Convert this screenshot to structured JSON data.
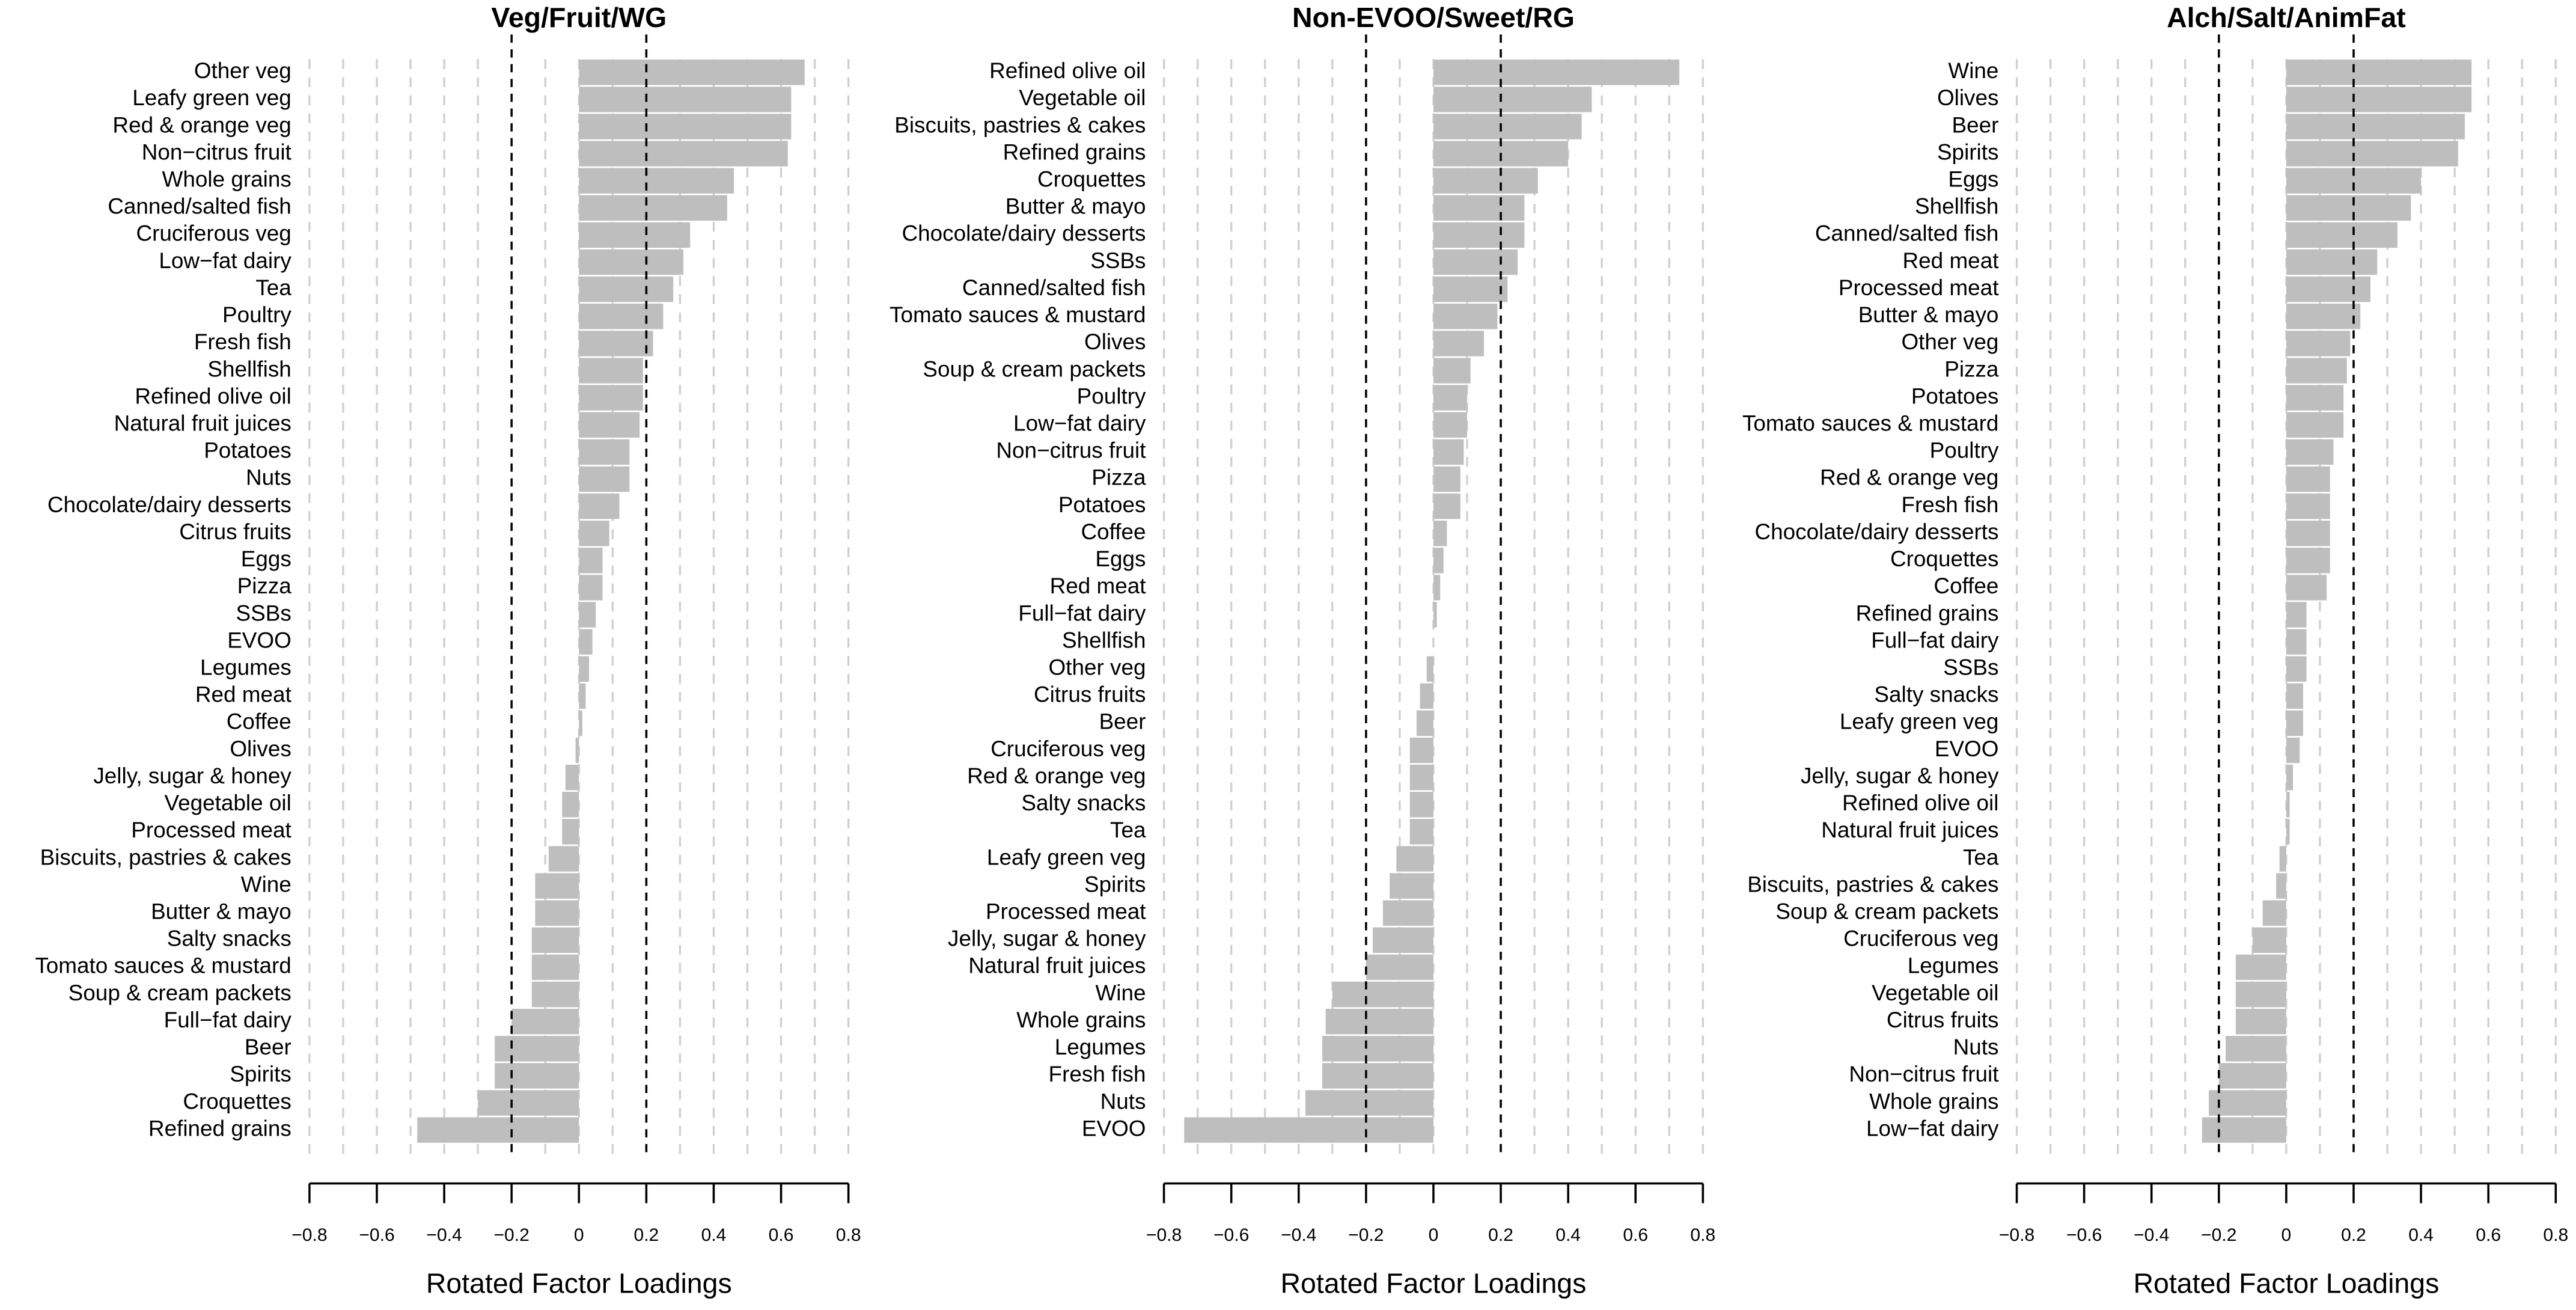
{
  "chart_data": [
    {
      "type": "bar",
      "orientation": "horizontal",
      "title": "Veg/Fruit/WG",
      "xlabel": "Rotated Factor Loadings",
      "color": "#bebebe",
      "categories": [
        "Other veg",
        "Leafy green veg",
        "Red & orange veg",
        "Non−citrus fruit",
        "Whole grains",
        "Canned/salted fish",
        "Cruciferous veg",
        "Low−fat dairy",
        "Tea",
        "Poultry",
        "Fresh fish",
        "Shellfish",
        "Refined olive oil",
        "Natural fruit juices",
        "Potatoes",
        "Nuts",
        "Chocolate/dairy desserts",
        "Citrus fruits",
        "Eggs",
        "Pizza",
        "SSBs",
        "EVOO",
        "Legumes",
        "Red meat",
        "Coffee",
        "Olives",
        "Jelly, sugar & honey",
        "Vegetable oil",
        "Processed meat",
        "Biscuits, pastries & cakes",
        "Wine",
        "Butter & mayo",
        "Salty snacks",
        "Tomato sauces & mustard",
        "Soup & cream packets",
        "Full−fat dairy",
        "Beer",
        "Spirits",
        "Croquettes",
        "Refined grains"
      ],
      "values": [
        0.67,
        0.63,
        0.63,
        0.62,
        0.46,
        0.44,
        0.33,
        0.31,
        0.28,
        0.25,
        0.22,
        0.19,
        0.19,
        0.18,
        0.15,
        0.15,
        0.12,
        0.09,
        0.07,
        0.07,
        0.05,
        0.04,
        0.03,
        0.02,
        0.01,
        -0.01,
        -0.04,
        -0.05,
        -0.05,
        -0.09,
        -0.13,
        -0.13,
        -0.14,
        -0.14,
        -0.14,
        -0.2,
        -0.25,
        -0.25,
        -0.3,
        -0.48
      ],
      "xlim": [
        -0.8,
        0.8
      ],
      "xticks": [
        {
          "value": -0.8,
          "label": "−0.8"
        },
        {
          "value": -0.6,
          "label": "−0.6"
        },
        {
          "value": -0.4,
          "label": "−0.4"
        },
        {
          "value": -0.2,
          "label": "−0.2"
        },
        0,
        0.2,
        0.4,
        0.6,
        0.8
      ],
      "gridlines": [
        -0.8,
        -0.7,
        -0.6,
        -0.5,
        -0.4,
        -0.3,
        -0.1,
        0.0,
        0.1,
        0.3,
        0.4,
        0.5,
        0.6,
        0.7,
        0.8
      ],
      "reflines": [
        -0.2,
        0.2
      ]
    },
    {
      "type": "bar",
      "orientation": "horizontal",
      "title": "Non-EVOO/Sweet/RG",
      "xlabel": "Rotated Factor Loadings",
      "color": "#bebebe",
      "categories": [
        "Refined olive oil",
        "Vegetable oil",
        "Biscuits, pastries & cakes",
        "Refined grains",
        "Croquettes",
        "Butter & mayo",
        "Chocolate/dairy desserts",
        "SSBs",
        "Canned/salted fish",
        "Tomato sauces & mustard",
        "Olives",
        "Soup & cream packets",
        "Poultry",
        "Low−fat dairy",
        "Non−citrus fruit",
        "Pizza",
        "Potatoes",
        "Coffee",
        "Eggs",
        "Red meat",
        "Full−fat dairy",
        "Shellfish",
        "Other veg",
        "Citrus fruits",
        "Beer",
        "Cruciferous veg",
        "Red & orange veg",
        "Salty snacks",
        "Tea",
        "Leafy green veg",
        "Spirits",
        "Processed meat",
        "Jelly, sugar & honey",
        "Natural fruit juices",
        "Wine",
        "Whole grains",
        "Legumes",
        "Fresh fish",
        "Nuts",
        "EVOO"
      ],
      "values": [
        0.73,
        0.47,
        0.44,
        0.4,
        0.31,
        0.27,
        0.27,
        0.25,
        0.22,
        0.19,
        0.15,
        0.11,
        0.1,
        0.1,
        0.09,
        0.08,
        0.08,
        0.04,
        0.03,
        0.02,
        0.01,
        0.0,
        -0.02,
        -0.04,
        -0.05,
        -0.07,
        -0.07,
        -0.07,
        -0.07,
        -0.11,
        -0.13,
        -0.15,
        -0.18,
        -0.2,
        -0.3,
        -0.32,
        -0.33,
        -0.33,
        -0.38,
        -0.74
      ],
      "xlim": [
        -0.8,
        0.8
      ],
      "xticks": [
        {
          "value": -0.8,
          "label": "−0.8"
        },
        {
          "value": -0.6,
          "label": "−0.6"
        },
        {
          "value": -0.4,
          "label": "−0.4"
        },
        {
          "value": -0.2,
          "label": "−0.2"
        },
        0,
        0.2,
        0.4,
        0.6,
        0.8
      ],
      "gridlines": [
        -0.8,
        -0.7,
        -0.6,
        -0.5,
        -0.4,
        -0.3,
        -0.1,
        0.0,
        0.1,
        0.3,
        0.4,
        0.5,
        0.6,
        0.7,
        0.8
      ],
      "reflines": [
        -0.2,
        0.2
      ]
    },
    {
      "type": "bar",
      "orientation": "horizontal",
      "title": "Alch/Salt/AnimFat",
      "xlabel": "Rotated Factor Loadings",
      "color": "#bebebe",
      "categories": [
        "Wine",
        "Olives",
        "Beer",
        "Spirits",
        "Eggs",
        "Shellfish",
        "Canned/salted fish",
        "Red meat",
        "Processed meat",
        "Butter & mayo",
        "Other veg",
        "Pizza",
        "Potatoes",
        "Tomato sauces & mustard",
        "Poultry",
        "Red & orange veg",
        "Fresh fish",
        "Chocolate/dairy desserts",
        "Croquettes",
        "Coffee",
        "Refined grains",
        "Full−fat dairy",
        "SSBs",
        "Salty snacks",
        "Leafy green veg",
        "EVOO",
        "Jelly, sugar & honey",
        "Refined olive oil",
        "Natural fruit juices",
        "Tea",
        "Biscuits, pastries & cakes",
        "Soup & cream packets",
        "Cruciferous veg",
        "Legumes",
        "Vegetable oil",
        "Citrus fruits",
        "Nuts",
        "Non−citrus fruit",
        "Whole grains",
        "Low−fat dairy"
      ],
      "values": [
        0.55,
        0.55,
        0.53,
        0.51,
        0.4,
        0.37,
        0.33,
        0.27,
        0.25,
        0.22,
        0.19,
        0.18,
        0.17,
        0.17,
        0.14,
        0.13,
        0.13,
        0.13,
        0.13,
        0.12,
        0.06,
        0.06,
        0.06,
        0.05,
        0.05,
        0.04,
        0.02,
        0.01,
        0.01,
        -0.02,
        -0.03,
        -0.07,
        -0.1,
        -0.15,
        -0.15,
        -0.15,
        -0.18,
        -0.2,
        -0.23,
        -0.25
      ],
      "xlim": [
        -0.8,
        0.8
      ],
      "xticks": [
        {
          "value": -0.8,
          "label": "−0.8"
        },
        {
          "value": -0.6,
          "label": "−0.6"
        },
        {
          "value": -0.4,
          "label": "−0.4"
        },
        {
          "value": -0.2,
          "label": "−0.2"
        },
        0,
        0.2,
        0.4,
        0.6,
        0.8
      ],
      "gridlines": [
        -0.8,
        -0.7,
        -0.6,
        -0.5,
        -0.4,
        -0.3,
        -0.1,
        0.0,
        0.1,
        0.3,
        0.4,
        0.5,
        0.6,
        0.7,
        0.8
      ],
      "reflines": [
        -0.2,
        0.2
      ]
    }
  ]
}
